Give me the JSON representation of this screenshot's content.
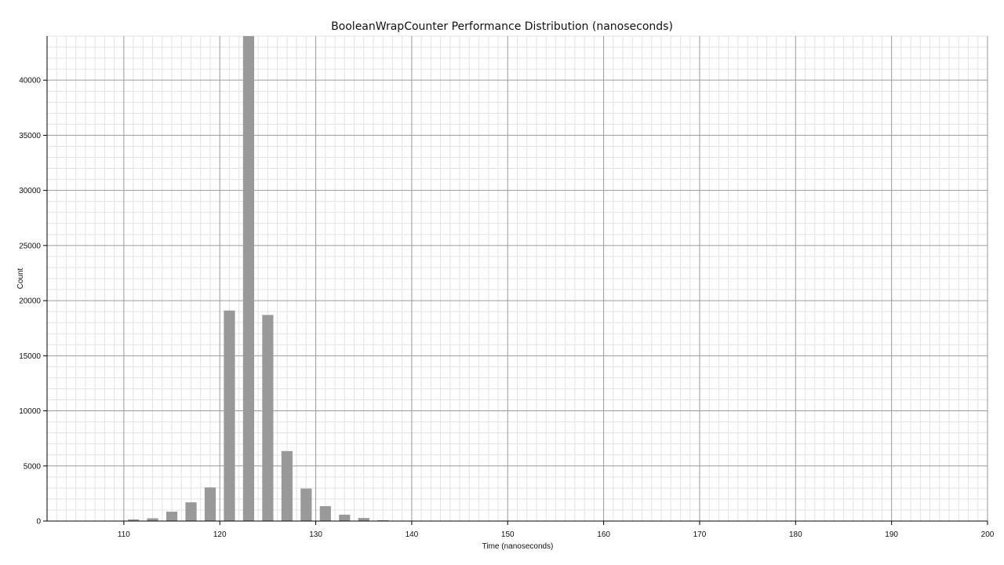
{
  "chart_data": {
    "type": "bar",
    "title": "BooleanWrapCounter  Performance Distribution (nanoseconds)",
    "xlabel": "Time (nanoseconds)",
    "ylabel": "Count",
    "xlim": [
      102,
      200
    ],
    "ylim": [
      0,
      44000
    ],
    "x_ticks": [
      110,
      120,
      130,
      140,
      150,
      160,
      170,
      180,
      190,
      200
    ],
    "y_ticks": [
      0,
      5000,
      10000,
      15000,
      20000,
      25000,
      30000,
      35000,
      40000
    ],
    "grid": true,
    "bar_color": "#999999",
    "series": [
      {
        "x": [
          111,
          113,
          115,
          117,
          119,
          121,
          123,
          125,
          127,
          129,
          131,
          133,
          135,
          137
        ],
        "values": [
          150,
          250,
          850,
          1700,
          3050,
          19100,
          44000,
          18700,
          6350,
          2950,
          1350,
          580,
          280,
          80
        ]
      }
    ]
  }
}
